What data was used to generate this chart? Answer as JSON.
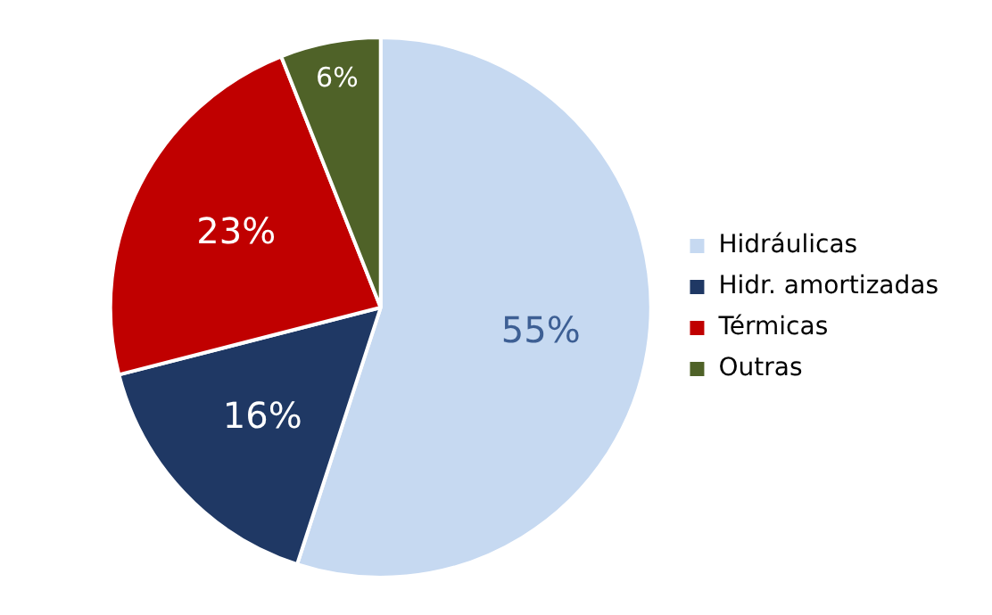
{
  "chart_data": {
    "type": "pie",
    "categories": [
      "Hidráulicas",
      "Hidr. amortizadas",
      "Térmicas",
      "Outras"
    ],
    "values": [
      55,
      16,
      23,
      6
    ],
    "colors": [
      "#c6d9f1",
      "#1f3864",
      "#c00000",
      "#4f6228"
    ],
    "value_labels": [
      "55%",
      "16%",
      "23%",
      "6%"
    ],
    "legend": "right"
  }
}
